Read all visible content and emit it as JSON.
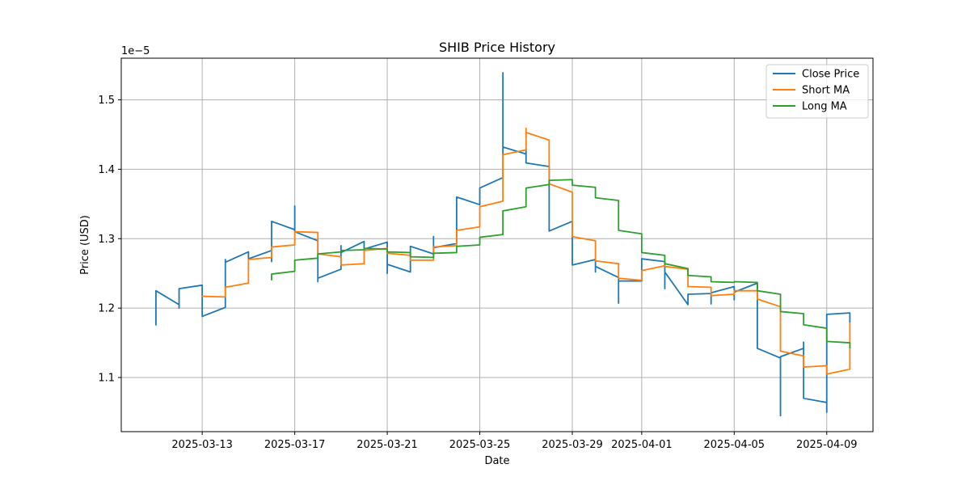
{
  "chart_data": {
    "type": "line",
    "title": "SHIB Price History",
    "xlabel": "Date",
    "ylabel": "Price (USD)",
    "y_offset_label": "1e−5",
    "y_scale_note": "values in units of 1e-5 USD",
    "grid": true,
    "legend_position": "top-right",
    "x_range": [
      "2025-03-09T12:00",
      "2025-04-11T00:00"
    ],
    "y_range": [
      1.022,
      1.56
    ],
    "x_ticks": [
      "2025-03-13",
      "2025-03-17",
      "2025-03-21",
      "2025-03-25",
      "2025-03-29",
      "2025-04-01",
      "2025-04-05",
      "2025-04-09"
    ],
    "y_ticks": [
      1.1,
      1.2,
      1.3,
      1.4,
      1.5
    ],
    "y_tick_labels": [
      "1.1",
      "1.2",
      "1.3",
      "1.4",
      "1.5"
    ],
    "colors": {
      "Close Price": "#1f77b4",
      "Short MA": "#ff7f0e",
      "Long MA": "#2ca02c",
      "grid": "#b0b0b0"
    },
    "series": [
      {
        "name": "Close Price",
        "points": [
          [
            "2025-03-11T00:00",
            1.176
          ],
          [
            "2025-03-11T00:00",
            1.225
          ],
          [
            "2025-03-12T00:00",
            1.205
          ],
          [
            "2025-03-12T00:00",
            1.2
          ],
          [
            "2025-03-12T00:00",
            1.228
          ],
          [
            "2025-03-13T00:00",
            1.233
          ],
          [
            "2025-03-13T00:00",
            1.188
          ],
          [
            "2025-03-14T00:00",
            1.201
          ],
          [
            "2025-03-14T00:00",
            1.27
          ],
          [
            "2025-03-14T00:00",
            1.266
          ],
          [
            "2025-03-15T00:00",
            1.281
          ],
          [
            "2025-03-15T00:00",
            1.271
          ],
          [
            "2025-03-16T00:00",
            1.283
          ],
          [
            "2025-03-16T00:00",
            1.267
          ],
          [
            "2025-03-16T00:00",
            1.325
          ],
          [
            "2025-03-17T00:00",
            1.313
          ],
          [
            "2025-03-17T00:00",
            1.347
          ],
          [
            "2025-03-17T00:00",
            1.31
          ],
          [
            "2025-03-18T00:00",
            1.297
          ],
          [
            "2025-03-18T00:00",
            1.238
          ],
          [
            "2025-03-18T00:00",
            1.243
          ],
          [
            "2025-03-19T00:00",
            1.256
          ],
          [
            "2025-03-19T00:00",
            1.29
          ],
          [
            "2025-03-19T00:00",
            1.28
          ],
          [
            "2025-03-20T00:00",
            1.296
          ],
          [
            "2025-03-20T00:00",
            1.285
          ],
          [
            "2025-03-21T00:00",
            1.295
          ],
          [
            "2025-03-21T00:00",
            1.25
          ],
          [
            "2025-03-21T00:00",
            1.263
          ],
          [
            "2025-03-22T00:00",
            1.252
          ],
          [
            "2025-03-22T00:00",
            1.289
          ],
          [
            "2025-03-23T00:00",
            1.278
          ],
          [
            "2025-03-23T00:00",
            1.303
          ],
          [
            "2025-03-23T00:00",
            1.287
          ],
          [
            "2025-03-24T00:00",
            1.293
          ],
          [
            "2025-03-24T00:00",
            1.36
          ],
          [
            "2025-03-25T00:00",
            1.349
          ],
          [
            "2025-03-25T00:00",
            1.373
          ],
          [
            "2025-03-26T00:00",
            1.388
          ],
          [
            "2025-03-26T00:00",
            1.539
          ],
          [
            "2025-03-26T00:00",
            1.432
          ],
          [
            "2025-03-27T00:00",
            1.422
          ],
          [
            "2025-03-27T00:00",
            1.431
          ],
          [
            "2025-03-27T00:00",
            1.409
          ],
          [
            "2025-03-28T00:00",
            1.404
          ],
          [
            "2025-03-28T00:00",
            1.311
          ],
          [
            "2025-03-29T00:00",
            1.325
          ],
          [
            "2025-03-29T00:00",
            1.262
          ],
          [
            "2025-03-30T00:00",
            1.27
          ],
          [
            "2025-03-30T00:00",
            1.252
          ],
          [
            "2025-03-30T00:00",
            1.26
          ],
          [
            "2025-03-31T00:00",
            1.244
          ],
          [
            "2025-03-31T00:00",
            1.207
          ],
          [
            "2025-03-31T00:00",
            1.239
          ],
          [
            "2025-04-01T00:00",
            1.239
          ],
          [
            "2025-04-01T00:00",
            1.271
          ],
          [
            "2025-04-02T00:00",
            1.267
          ],
          [
            "2025-04-02T00:00",
            1.228
          ],
          [
            "2025-04-02T00:00",
            1.252
          ],
          [
            "2025-04-03T00:00",
            1.205
          ],
          [
            "2025-04-03T00:00",
            1.22
          ],
          [
            "2025-04-04T00:00",
            1.221
          ],
          [
            "2025-04-04T00:00",
            1.206
          ],
          [
            "2025-04-04T00:00",
            1.222
          ],
          [
            "2025-04-05T00:00",
            1.231
          ],
          [
            "2025-04-05T00:00",
            1.212
          ],
          [
            "2025-04-05T00:00",
            1.223
          ],
          [
            "2025-04-06T00:00",
            1.236
          ],
          [
            "2025-04-06T00:00",
            1.142
          ],
          [
            "2025-04-07T00:00",
            1.128
          ],
          [
            "2025-04-07T00:00",
            1.045
          ],
          [
            "2025-04-07T00:00",
            1.13
          ],
          [
            "2025-04-08T00:00",
            1.142
          ],
          [
            "2025-04-08T00:00",
            1.151
          ],
          [
            "2025-04-08T00:00",
            1.07
          ],
          [
            "2025-04-09T00:00",
            1.064
          ],
          [
            "2025-04-09T00:00",
            1.05
          ],
          [
            "2025-04-09T00:00",
            1.191
          ],
          [
            "2025-04-10T00:00",
            1.193
          ],
          [
            "2025-04-10T00:00",
            1.18
          ]
        ]
      },
      {
        "name": "Short MA",
        "points": [
          [
            "2025-03-13T00:00",
            1.217
          ],
          [
            "2025-03-14T00:00",
            1.216
          ],
          [
            "2025-03-14T00:00",
            1.23
          ],
          [
            "2025-03-15T00:00",
            1.236
          ],
          [
            "2025-03-15T00:00",
            1.27
          ],
          [
            "2025-03-16T00:00",
            1.273
          ],
          [
            "2025-03-16T00:00",
            1.288
          ],
          [
            "2025-03-17T00:00",
            1.291
          ],
          [
            "2025-03-17T00:00",
            1.31
          ],
          [
            "2025-03-18T00:00",
            1.309
          ],
          [
            "2025-03-18T00:00",
            1.278
          ],
          [
            "2025-03-19T00:00",
            1.274
          ],
          [
            "2025-03-19T00:00",
            1.262
          ],
          [
            "2025-03-20T00:00",
            1.264
          ],
          [
            "2025-03-20T00:00",
            1.283
          ],
          [
            "2025-03-21T00:00",
            1.286
          ],
          [
            "2025-03-21T00:00",
            1.279
          ],
          [
            "2025-03-22T00:00",
            1.276
          ],
          [
            "2025-03-22T00:00",
            1.269
          ],
          [
            "2025-03-23T00:00",
            1.269
          ],
          [
            "2025-03-23T00:00",
            1.288
          ],
          [
            "2025-03-24T00:00",
            1.29
          ],
          [
            "2025-03-24T00:00",
            1.312
          ],
          [
            "2025-03-25T00:00",
            1.317
          ],
          [
            "2025-03-25T00:00",
            1.346
          ],
          [
            "2025-03-26T00:00",
            1.354
          ],
          [
            "2025-03-26T00:00",
            1.421
          ],
          [
            "2025-03-27T00:00",
            1.428
          ],
          [
            "2025-03-27T00:00",
            1.459
          ],
          [
            "2025-03-27T00:00",
            1.453
          ],
          [
            "2025-03-28T00:00",
            1.442
          ],
          [
            "2025-03-28T00:00",
            1.379
          ],
          [
            "2025-03-29T00:00",
            1.367
          ],
          [
            "2025-03-29T00:00",
            1.303
          ],
          [
            "2025-03-30T00:00",
            1.297
          ],
          [
            "2025-03-30T00:00",
            1.268
          ],
          [
            "2025-03-31T00:00",
            1.264
          ],
          [
            "2025-03-31T00:00",
            1.243
          ],
          [
            "2025-04-01T00:00",
            1.24
          ],
          [
            "2025-04-01T00:00",
            1.254
          ],
          [
            "2025-04-02T00:00",
            1.261
          ],
          [
            "2025-04-02T00:00",
            1.26
          ],
          [
            "2025-04-03T00:00",
            1.256
          ],
          [
            "2025-04-03T00:00",
            1.231
          ],
          [
            "2025-04-04T00:00",
            1.23
          ],
          [
            "2025-04-04T00:00",
            1.218
          ],
          [
            "2025-04-05T00:00",
            1.22
          ],
          [
            "2025-04-05T00:00",
            1.225
          ],
          [
            "2025-04-06T00:00",
            1.225
          ],
          [
            "2025-04-06T00:00",
            1.213
          ],
          [
            "2025-04-07T00:00",
            1.202
          ],
          [
            "2025-04-07T00:00",
            1.138
          ],
          [
            "2025-04-08T00:00",
            1.131
          ],
          [
            "2025-04-08T00:00",
            1.115
          ],
          [
            "2025-04-09T00:00",
            1.117
          ],
          [
            "2025-04-09T00:00",
            1.105
          ],
          [
            "2025-04-10T00:00",
            1.112
          ],
          [
            "2025-04-10T00:00",
            1.178
          ]
        ]
      },
      {
        "name": "Long MA",
        "points": [
          [
            "2025-03-16T00:00",
            1.241
          ],
          [
            "2025-03-16T00:00",
            1.249
          ],
          [
            "2025-03-17T00:00",
            1.253
          ],
          [
            "2025-03-17T00:00",
            1.269
          ],
          [
            "2025-03-18T00:00",
            1.272
          ],
          [
            "2025-03-18T00:00",
            1.278
          ],
          [
            "2025-03-19T00:00",
            1.281
          ],
          [
            "2025-03-19T00:00",
            1.283
          ],
          [
            "2025-03-20T00:00",
            1.284
          ],
          [
            "2025-03-20T00:00",
            1.286
          ],
          [
            "2025-03-21T00:00",
            1.285
          ],
          [
            "2025-03-21T00:00",
            1.281
          ],
          [
            "2025-03-22T00:00",
            1.28
          ],
          [
            "2025-03-22T00:00",
            1.274
          ],
          [
            "2025-03-23T00:00",
            1.273
          ],
          [
            "2025-03-23T00:00",
            1.279
          ],
          [
            "2025-03-24T00:00",
            1.28
          ],
          [
            "2025-03-24T00:00",
            1.289
          ],
          [
            "2025-03-25T00:00",
            1.291
          ],
          [
            "2025-03-25T00:00",
            1.302
          ],
          [
            "2025-03-26T00:00",
            1.306
          ],
          [
            "2025-03-26T00:00",
            1.34
          ],
          [
            "2025-03-27T00:00",
            1.346
          ],
          [
            "2025-03-27T00:00",
            1.373
          ],
          [
            "2025-03-28T00:00",
            1.378
          ],
          [
            "2025-03-28T00:00",
            1.384
          ],
          [
            "2025-03-29T00:00",
            1.385
          ],
          [
            "2025-03-29T00:00",
            1.377
          ],
          [
            "2025-03-30T00:00",
            1.374
          ],
          [
            "2025-03-30T00:00",
            1.359
          ],
          [
            "2025-03-31T00:00",
            1.355
          ],
          [
            "2025-03-31T00:00",
            1.312
          ],
          [
            "2025-04-01T00:00",
            1.307
          ],
          [
            "2025-04-01T00:00",
            1.28
          ],
          [
            "2025-04-02T00:00",
            1.276
          ],
          [
            "2025-04-02T00:00",
            1.264
          ],
          [
            "2025-04-03T00:00",
            1.257
          ],
          [
            "2025-04-03T00:00",
            1.247
          ],
          [
            "2025-04-04T00:00",
            1.245
          ],
          [
            "2025-04-04T00:00",
            1.238
          ],
          [
            "2025-04-05T00:00",
            1.237
          ],
          [
            "2025-04-05T00:00",
            1.238
          ],
          [
            "2025-04-06T00:00",
            1.237
          ],
          [
            "2025-04-06T00:00",
            1.225
          ],
          [
            "2025-04-07T00:00",
            1.22
          ],
          [
            "2025-04-07T00:00",
            1.195
          ],
          [
            "2025-04-08T00:00",
            1.192
          ],
          [
            "2025-04-08T00:00",
            1.176
          ],
          [
            "2025-04-09T00:00",
            1.171
          ],
          [
            "2025-04-09T00:00",
            1.152
          ],
          [
            "2025-04-10T00:00",
            1.15
          ],
          [
            "2025-04-10T00:00",
            1.143
          ]
        ]
      }
    ]
  }
}
